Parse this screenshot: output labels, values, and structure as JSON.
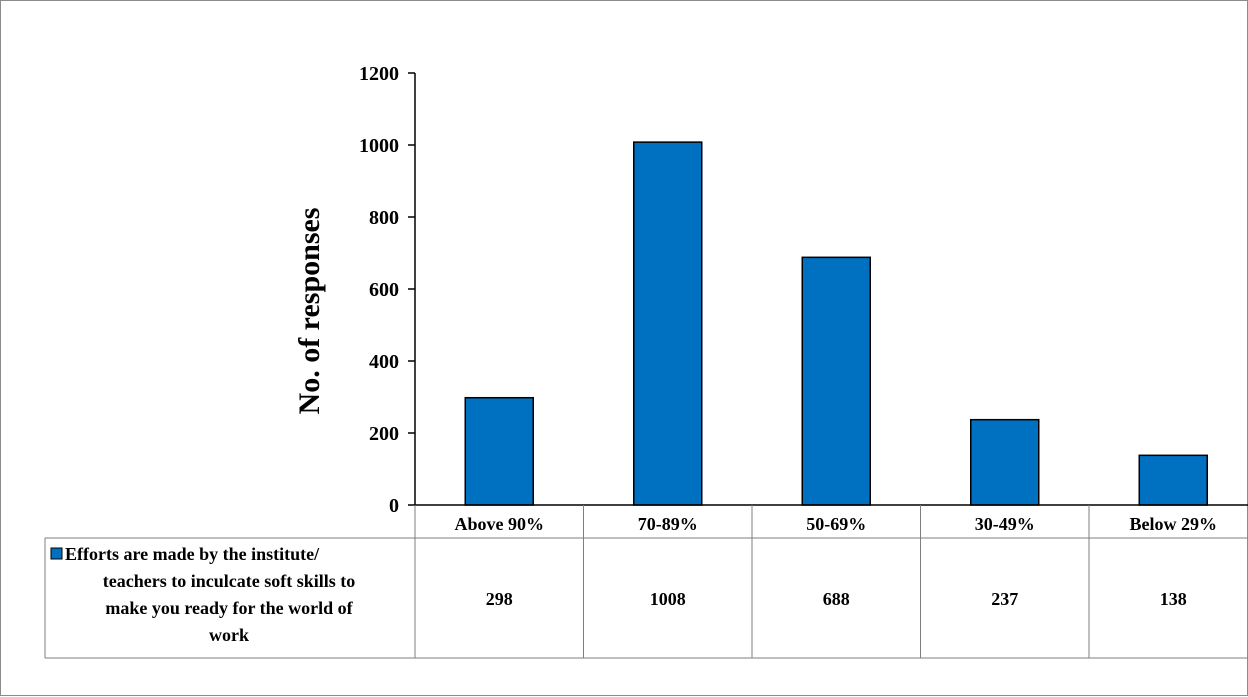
{
  "chart_data": {
    "type": "bar",
    "categories": [
      "Above 90%",
      "70-89%",
      "50-69%",
      "30-49%",
      "Below 29%"
    ],
    "series": [
      {
        "name": "Efforts are made by the institute/ teachers to inculcate soft skills to make you ready for the world of work",
        "values": [
          298,
          1008,
          688,
          237,
          138
        ]
      }
    ],
    "ylabel": "No. of responses",
    "ylim": [
      0,
      1200
    ],
    "yticks": [
      0,
      200,
      400,
      600,
      800,
      1000,
      1200
    ],
    "grid": false,
    "legend": "data-table",
    "bar_color": "#0070C0",
    "legend_lines": [
      "Efforts are made by the institute/",
      "teachers to inculcate soft skills to",
      "make you ready for the world of",
      "work"
    ]
  }
}
